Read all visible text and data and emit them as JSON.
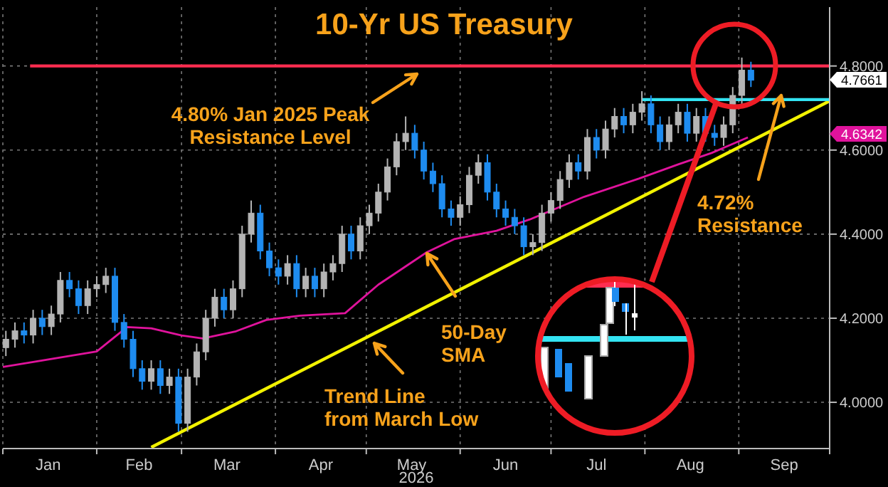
{
  "chart_data": {
    "type": "candlestick",
    "title": "10-Yr US Treasury",
    "xlabel": "2026",
    "xlim": [
      "2026-01-01",
      "2026-10-01"
    ],
    "xticks": [
      {
        "value": "2026-01-01",
        "label": null
      },
      {
        "value": "2026-01-16",
        "label": "Jan"
      },
      {
        "value": "2026-02-01",
        "label": null
      },
      {
        "value": "2026-02-15",
        "label": "Feb"
      },
      {
        "value": "2026-03-01",
        "label": null
      },
      {
        "value": "2026-03-16",
        "label": "Mar"
      },
      {
        "value": "2026-04-01",
        "label": null
      },
      {
        "value": "2026-04-16",
        "label": "Apr"
      },
      {
        "value": "2026-05-01",
        "label": null
      },
      {
        "value": "2026-05-16",
        "label": "May"
      },
      {
        "value": "2026-06-01",
        "label": null
      },
      {
        "value": "2026-06-16",
        "label": "Jun"
      },
      {
        "value": "2026-07-01",
        "label": null
      },
      {
        "value": "2026-07-16",
        "label": "Jul"
      },
      {
        "value": "2026-08-01",
        "label": null
      },
      {
        "value": "2026-08-16",
        "label": "Aug"
      },
      {
        "value": "2026-09-01",
        "label": null
      },
      {
        "value": "2026-09-16",
        "label": "Sep"
      },
      {
        "value": "2026-10-01",
        "label": null
      }
    ],
    "ylim": [
      3.89,
      4.94
    ],
    "yticks": [
      {
        "value": 4,
        "label": "4.0000"
      },
      {
        "value": 4.2,
        "label": "4.2000"
      },
      {
        "value": 4.4,
        "label": "4.4000"
      },
      {
        "value": 4.6,
        "label": "4.6000"
      },
      {
        "value": 4.8,
        "label": "4.8000"
      }
    ],
    "grid": true,
    "x": [
      "2026-01-02",
      "2026-01-05",
      "2026-01-08",
      "2026-01-11",
      "2026-01-14",
      "2026-01-17",
      "2026-01-20",
      "2026-01-23",
      "2026-01-26",
      "2026-01-29",
      "2026-02-01",
      "2026-02-04",
      "2026-02-07",
      "2026-02-10",
      "2026-02-13",
      "2026-02-16",
      "2026-02-19",
      "2026-02-22",
      "2026-02-25",
      "2026-02-28",
      "2026-03-03",
      "2026-03-06",
      "2026-03-09",
      "2026-03-12",
      "2026-03-15",
      "2026-03-18",
      "2026-03-21",
      "2026-03-24",
      "2026-03-27",
      "2026-03-30",
      "2026-04-02",
      "2026-04-05",
      "2026-04-08",
      "2026-04-11",
      "2026-04-14",
      "2026-04-17",
      "2026-04-20",
      "2026-04-23",
      "2026-04-26",
      "2026-04-29",
      "2026-05-02",
      "2026-05-05",
      "2026-05-08",
      "2026-05-11",
      "2026-05-14",
      "2026-05-17",
      "2026-05-20",
      "2026-05-23",
      "2026-05-26",
      "2026-05-29",
      "2026-06-01",
      "2026-06-04",
      "2026-06-07",
      "2026-06-10",
      "2026-06-13",
      "2026-06-16",
      "2026-06-19",
      "2026-06-22",
      "2026-06-25",
      "2026-06-28",
      "2026-07-01",
      "2026-07-04",
      "2026-07-07",
      "2026-07-10",
      "2026-07-13",
      "2026-07-16",
      "2026-07-19",
      "2026-07-22",
      "2026-07-25",
      "2026-07-28",
      "2026-07-31",
      "2026-08-03",
      "2026-08-06",
      "2026-08-09",
      "2026-08-12",
      "2026-08-15",
      "2026-08-18",
      "2026-08-21",
      "2026-08-24",
      "2026-08-27",
      "2026-08-30",
      "2026-09-02",
      "2026-09-05"
    ],
    "ohlc": [
      [
        4.13,
        4.17,
        4.11,
        4.15
      ],
      [
        4.15,
        4.19,
        4.13,
        4.17
      ],
      [
        4.17,
        4.19,
        4.14,
        4.16
      ],
      [
        4.16,
        4.22,
        4.14,
        4.2
      ],
      [
        4.2,
        4.22,
        4.16,
        4.18
      ],
      [
        4.18,
        4.23,
        4.16,
        4.21
      ],
      [
        4.21,
        4.31,
        4.19,
        4.29
      ],
      [
        4.29,
        4.31,
        4.25,
        4.27
      ],
      [
        4.27,
        4.29,
        4.21,
        4.23
      ],
      [
        4.23,
        4.29,
        4.21,
        4.27
      ],
      [
        4.27,
        4.3,
        4.25,
        4.28
      ],
      [
        4.28,
        4.32,
        4.26,
        4.3
      ],
      [
        4.3,
        4.32,
        4.17,
        4.19
      ],
      [
        4.19,
        4.21,
        4.13,
        4.15
      ],
      [
        4.15,
        4.17,
        4.06,
        4.08
      ],
      [
        4.08,
        4.1,
        4.03,
        4.05
      ],
      [
        4.05,
        4.1,
        4.03,
        4.08
      ],
      [
        4.08,
        4.1,
        4.02,
        4.04
      ],
      [
        4.04,
        4.08,
        4.02,
        4.06
      ],
      [
        4.06,
        4.08,
        3.93,
        3.95
      ],
      [
        3.95,
        4.08,
        3.93,
        4.06
      ],
      [
        4.06,
        4.14,
        4.04,
        4.12
      ],
      [
        4.12,
        4.22,
        4.1,
        4.2
      ],
      [
        4.2,
        4.27,
        4.18,
        4.25
      ],
      [
        4.25,
        4.27,
        4.2,
        4.22
      ],
      [
        4.22,
        4.29,
        4.2,
        4.27
      ],
      [
        4.27,
        4.42,
        4.25,
        4.4
      ],
      [
        4.4,
        4.48,
        4.38,
        4.45
      ],
      [
        4.45,
        4.47,
        4.34,
        4.36
      ],
      [
        4.36,
        4.38,
        4.3,
        4.32
      ],
      [
        4.32,
        4.34,
        4.28,
        4.3
      ],
      [
        4.3,
        4.35,
        4.28,
        4.33
      ],
      [
        4.33,
        4.35,
        4.25,
        4.27
      ],
      [
        4.27,
        4.32,
        4.25,
        4.3
      ],
      [
        4.3,
        4.32,
        4.25,
        4.27
      ],
      [
        4.27,
        4.33,
        4.25,
        4.31
      ],
      [
        4.31,
        4.35,
        4.29,
        4.33
      ],
      [
        4.33,
        4.42,
        4.31,
        4.4
      ],
      [
        4.4,
        4.42,
        4.34,
        4.36
      ],
      [
        4.36,
        4.44,
        4.34,
        4.42
      ],
      [
        4.42,
        4.47,
        4.4,
        4.45
      ],
      [
        4.45,
        4.52,
        4.43,
        4.5
      ],
      [
        4.5,
        4.58,
        4.48,
        4.56
      ],
      [
        4.56,
        4.64,
        4.54,
        4.62
      ],
      [
        4.62,
        4.68,
        4.6,
        4.64
      ],
      [
        4.64,
        4.66,
        4.58,
        4.6
      ],
      [
        4.6,
        4.62,
        4.53,
        4.55
      ],
      [
        4.55,
        4.57,
        4.5,
        4.52
      ],
      [
        4.52,
        4.54,
        4.44,
        4.46
      ],
      [
        4.46,
        4.48,
        4.42,
        4.44
      ],
      [
        4.44,
        4.49,
        4.42,
        4.47
      ],
      [
        4.47,
        4.56,
        4.45,
        4.54
      ],
      [
        4.54,
        4.59,
        4.52,
        4.57
      ],
      [
        4.57,
        4.59,
        4.48,
        4.5
      ],
      [
        4.5,
        4.52,
        4.44,
        4.46
      ],
      [
        4.46,
        4.48,
        4.42,
        4.44
      ],
      [
        4.44,
        4.46,
        4.4,
        4.42
      ],
      [
        4.42,
        4.44,
        4.35,
        4.37
      ],
      [
        4.37,
        4.4,
        4.35,
        4.38
      ],
      [
        4.38,
        4.47,
        4.36,
        4.45
      ],
      [
        4.45,
        4.5,
        4.43,
        4.48
      ],
      [
        4.48,
        4.55,
        4.46,
        4.53
      ],
      [
        4.53,
        4.59,
        4.51,
        4.57
      ],
      [
        4.57,
        4.59,
        4.53,
        4.55
      ],
      [
        4.55,
        4.65,
        4.53,
        4.63
      ],
      [
        4.63,
        4.65,
        4.58,
        4.6
      ],
      [
        4.6,
        4.67,
        4.58,
        4.65
      ],
      [
        4.65,
        4.7,
        4.63,
        4.68
      ],
      [
        4.68,
        4.7,
        4.64,
        4.66
      ],
      [
        4.66,
        4.71,
        4.64,
        4.69
      ],
      [
        4.69,
        4.74,
        4.67,
        4.71
      ],
      [
        4.71,
        4.73,
        4.64,
        4.66
      ],
      [
        4.66,
        4.68,
        4.6,
        4.62
      ],
      [
        4.62,
        4.68,
        4.6,
        4.66
      ],
      [
        4.66,
        4.71,
        4.64,
        4.69
      ],
      [
        4.69,
        4.71,
        4.62,
        4.64
      ],
      [
        4.64,
        4.7,
        4.62,
        4.68
      ],
      [
        4.68,
        4.7,
        4.62,
        4.64
      ],
      [
        4.64,
        4.66,
        4.61,
        4.63
      ],
      [
        4.63,
        4.68,
        4.61,
        4.66
      ],
      [
        4.66,
        4.75,
        4.64,
        4.73
      ],
      [
        4.73,
        4.82,
        4.71,
        4.79
      ],
      [
        4.79,
        4.81,
        4.75,
        4.7661
      ]
    ],
    "colors": [
      "#b4b4b4",
      "#b4b4b4",
      "#1e8cf0",
      "#b4b4b4",
      "#1e8cf0",
      "#b4b4b4",
      "#b4b4b4",
      "#1e8cf0",
      "#1e8cf0",
      "#b4b4b4",
      "#b4b4b4",
      "#b4b4b4",
      "#1e8cf0",
      "#1e8cf0",
      "#1e8cf0",
      "#1e8cf0",
      "#b4b4b4",
      "#1e8cf0",
      "#b4b4b4",
      "#1e8cf0",
      "#b4b4b4",
      "#b4b4b4",
      "#b4b4b4",
      "#b4b4b4",
      "#1e8cf0",
      "#b4b4b4",
      "#b4b4b4",
      "#b4b4b4",
      "#1e8cf0",
      "#1e8cf0",
      "#1e8cf0",
      "#b4b4b4",
      "#1e8cf0",
      "#b4b4b4",
      "#1e8cf0",
      "#b4b4b4",
      "#b4b4b4",
      "#b4b4b4",
      "#1e8cf0",
      "#b4b4b4",
      "#b4b4b4",
      "#b4b4b4",
      "#b4b4b4",
      "#b4b4b4",
      "#b4b4b4",
      "#1e8cf0",
      "#1e8cf0",
      "#1e8cf0",
      "#1e8cf0",
      "#1e8cf0",
      "#b4b4b4",
      "#b4b4b4",
      "#b4b4b4",
      "#1e8cf0",
      "#1e8cf0",
      "#1e8cf0",
      "#1e8cf0",
      "#1e8cf0",
      "#b4b4b4",
      "#b4b4b4",
      "#b4b4b4",
      "#b4b4b4",
      "#b4b4b4",
      "#1e8cf0",
      "#b4b4b4",
      "#1e8cf0",
      "#b4b4b4",
      "#b4b4b4",
      "#1e8cf0",
      "#b4b4b4",
      "#b4b4b4",
      "#1e8cf0",
      "#1e8cf0",
      "#b4b4b4",
      "#b4b4b4",
      "#1e8cf0",
      "#b4b4b4",
      "#1e8cf0",
      "#1e8cf0",
      "#b4b4b4",
      "#b4b4b4",
      "#b4b4b4",
      "#1e8cf0"
    ],
    "series": [
      {
        "type": "line",
        "color": "#e0139c",
        "x": [
          "2026-01-01",
          "2026-02-01",
          "2026-02-11",
          "2026-02-19",
          "2026-03-01",
          "2026-03-08",
          "2026-03-19",
          "2026-03-29",
          "2026-04-09",
          "2026-04-24",
          "2026-05-05",
          "2026-05-21",
          "2026-05-30",
          "2026-06-13",
          "2026-06-24",
          "2026-07-12",
          "2026-07-30",
          "2026-08-12",
          "2026-08-23",
          "2026-09-04"
        ],
        "values": [
          4.084,
          4.121,
          4.179,
          4.176,
          4.159,
          4.152,
          4.169,
          4.196,
          4.206,
          4.212,
          4.28,
          4.357,
          4.388,
          4.408,
          4.435,
          4.489,
          4.532,
          4.566,
          4.593,
          4.63
        ]
      },
      {
        "type": "line",
        "color": "#f2f200",
        "x": [
          "2026-02-19",
          "2026-10-01"
        ],
        "values": [
          3.893,
          4.717
        ]
      },
      {
        "type": "line",
        "color": "#ff2d50",
        "x": [
          "2026-01-10",
          "2026-10-01"
        ],
        "values": [
          4.8,
          4.8
        ]
      },
      {
        "type": "line",
        "color": "#33e3f2",
        "x": [
          "2026-07-31",
          "2026-10-01"
        ],
        "values": [
          4.72,
          4.72
        ]
      }
    ],
    "annotations": [
      "4.80% Jan 2025 Peak\nResistance Level",
      "50-Day\nSMA",
      "Trend Line\nfrom March Low",
      {
        "text": "4.72%\nResistance",
        "x": "2026-09-15",
        "y": 4.72
      },
      "4.7661",
      "4.6342"
    ]
  }
}
